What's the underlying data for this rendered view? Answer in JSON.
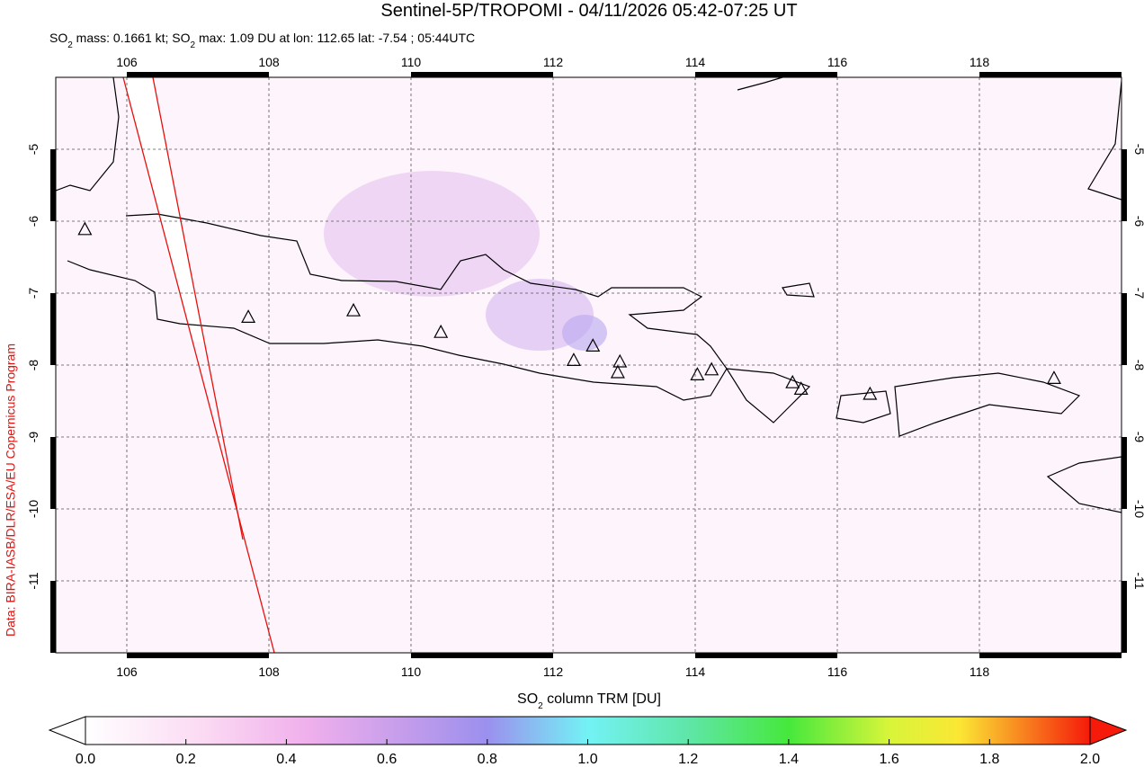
{
  "header": {
    "title": "Sentinel-5P/TROPOMI - 04/11/2026 05:42-07:25 UT",
    "subtitle": [
      "SO",
      "2",
      " mass: 0.1661 kt; SO",
      "2",
      " max: 1.09 DU at lon: 112.65 lat: -7.54 ; 05:44UTC"
    ]
  },
  "map": {
    "lonlim": [
      105,
      120
    ],
    "latlim": [
      -12,
      -4
    ],
    "lonticks": [
      106,
      108,
      110,
      112,
      114,
      116,
      118
    ],
    "latticks": [
      -5,
      -6,
      -7,
      -8,
      -9,
      -10,
      -11
    ],
    "volcanoes": [
      {
        "lon": 105.41,
        "lat": -6.11
      },
      {
        "lon": 107.71,
        "lat": -7.33
      },
      {
        "lon": 109.19,
        "lat": -7.24
      },
      {
        "lon": 110.42,
        "lat": -7.54
      },
      {
        "lon": 112.56,
        "lat": -7.73
      },
      {
        "lon": 112.29,
        "lat": -7.93
      },
      {
        "lon": 112.94,
        "lat": -7.95
      },
      {
        "lon": 112.91,
        "lat": -8.1
      },
      {
        "lon": 114.03,
        "lat": -8.13
      },
      {
        "lon": 114.23,
        "lat": -8.06
      },
      {
        "lon": 115.37,
        "lat": -8.24
      },
      {
        "lon": 115.49,
        "lat": -8.33
      },
      {
        "lon": 116.46,
        "lat": -8.4
      },
      {
        "lon": 119.05,
        "lat": -8.18
      }
    ],
    "credit": "Data: BIRA-IASB/DLR/ESA/EU Copernicus Program"
  },
  "colorbar": {
    "label": [
      "SO",
      "2",
      " column TRM [DU]"
    ],
    "lim": [
      0,
      2
    ],
    "ticks": [
      {
        "value": 0,
        "label": "0.0"
      },
      0.2,
      0.4,
      0.6,
      0.8,
      {
        "value": 1,
        "label": "1.0"
      },
      1.2,
      1.4,
      1.6,
      1.8,
      {
        "value": 2,
        "label": "2.0"
      }
    ]
  }
}
